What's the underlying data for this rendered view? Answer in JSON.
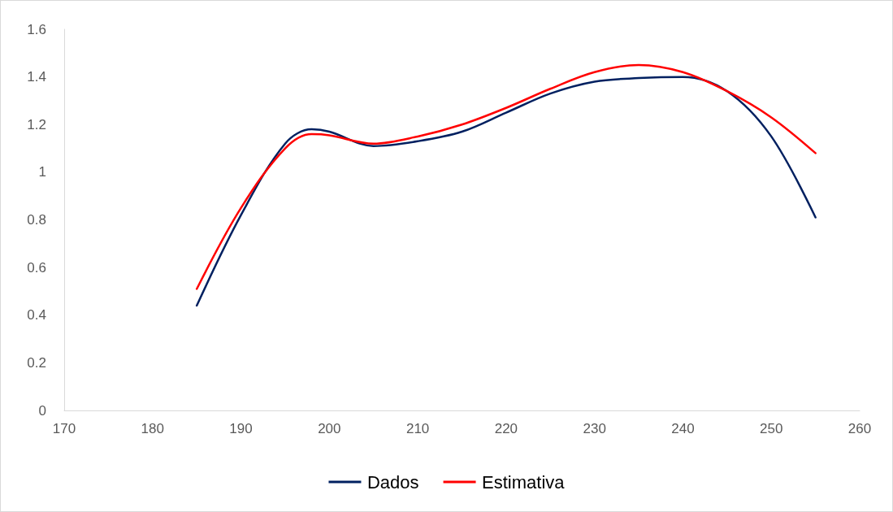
{
  "chart_data": {
    "type": "line",
    "x": [
      185,
      190,
      195,
      198,
      200,
      205,
      210,
      215,
      220,
      225,
      230,
      235,
      240,
      245,
      250,
      255
    ],
    "series": [
      {
        "name": "Dados",
        "color": "#002060",
        "values": [
          0.44,
          0.82,
          1.12,
          1.18,
          1.17,
          1.11,
          1.13,
          1.17,
          1.25,
          1.33,
          1.38,
          1.395,
          1.4,
          1.34,
          1.15,
          0.81
        ]
      },
      {
        "name": "Estimativa",
        "color": "#ff0000",
        "values": [
          0.51,
          0.85,
          1.1,
          1.16,
          1.155,
          1.12,
          1.15,
          1.2,
          1.27,
          1.35,
          1.42,
          1.45,
          1.42,
          1.34,
          1.23,
          1.08
        ]
      }
    ],
    "xlim": [
      170,
      260
    ],
    "xticks": [
      170,
      180,
      190,
      200,
      210,
      220,
      230,
      240,
      250,
      260
    ],
    "ylim": [
      0,
      1.6
    ],
    "yticks": [
      0,
      0.2,
      0.4,
      0.6,
      0.8,
      1,
      1.2,
      1.4,
      1.6
    ],
    "grid": false,
    "legend": "bottom",
    "marker": "none",
    "line_style": "solid"
  }
}
